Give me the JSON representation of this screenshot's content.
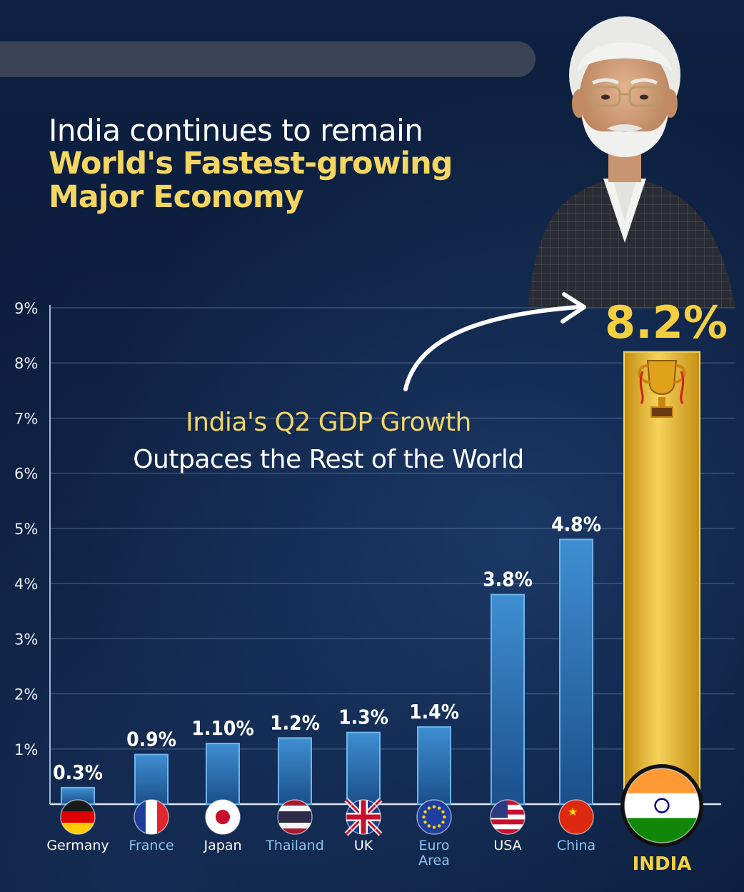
{
  "headline": {
    "line1": "India continues to remain",
    "line2": "World's Fastest-growing",
    "line3": "Major Economy"
  },
  "subhead": {
    "line1": "India's Q2 GDP Growth",
    "line2": "Outpaces the Rest of the World"
  },
  "colors": {
    "accent_gold": "#f4d661",
    "bar_blue": "#2f76b6",
    "india_bar_gold": "#e8b923",
    "background": "#0b1a33"
  },
  "chart_data": {
    "type": "bar",
    "title": "India's Q2 GDP Growth Outpaces the Rest of the World",
    "xlabel": "",
    "ylabel": "",
    "ylim": [
      0,
      9
    ],
    "yticks": [
      "1%",
      "2%",
      "3%",
      "4%",
      "5%",
      "6%",
      "7%",
      "8%",
      "9%"
    ],
    "grid": true,
    "categories": [
      "Germany",
      "France",
      "Japan",
      "Thailand",
      "UK",
      "Euro Area",
      "USA",
      "China",
      "INDIA"
    ],
    "values": [
      0.3,
      0.9,
      1.1,
      1.2,
      1.3,
      1.4,
      3.8,
      4.8,
      8.2
    ],
    "value_labels": [
      "0.3%",
      "0.9%",
      "1.10%",
      "1.2%",
      "1.3%",
      "1.4%",
      "3.8%",
      "4.8%",
      "8.2%"
    ],
    "highlight": "INDIA"
  }
}
